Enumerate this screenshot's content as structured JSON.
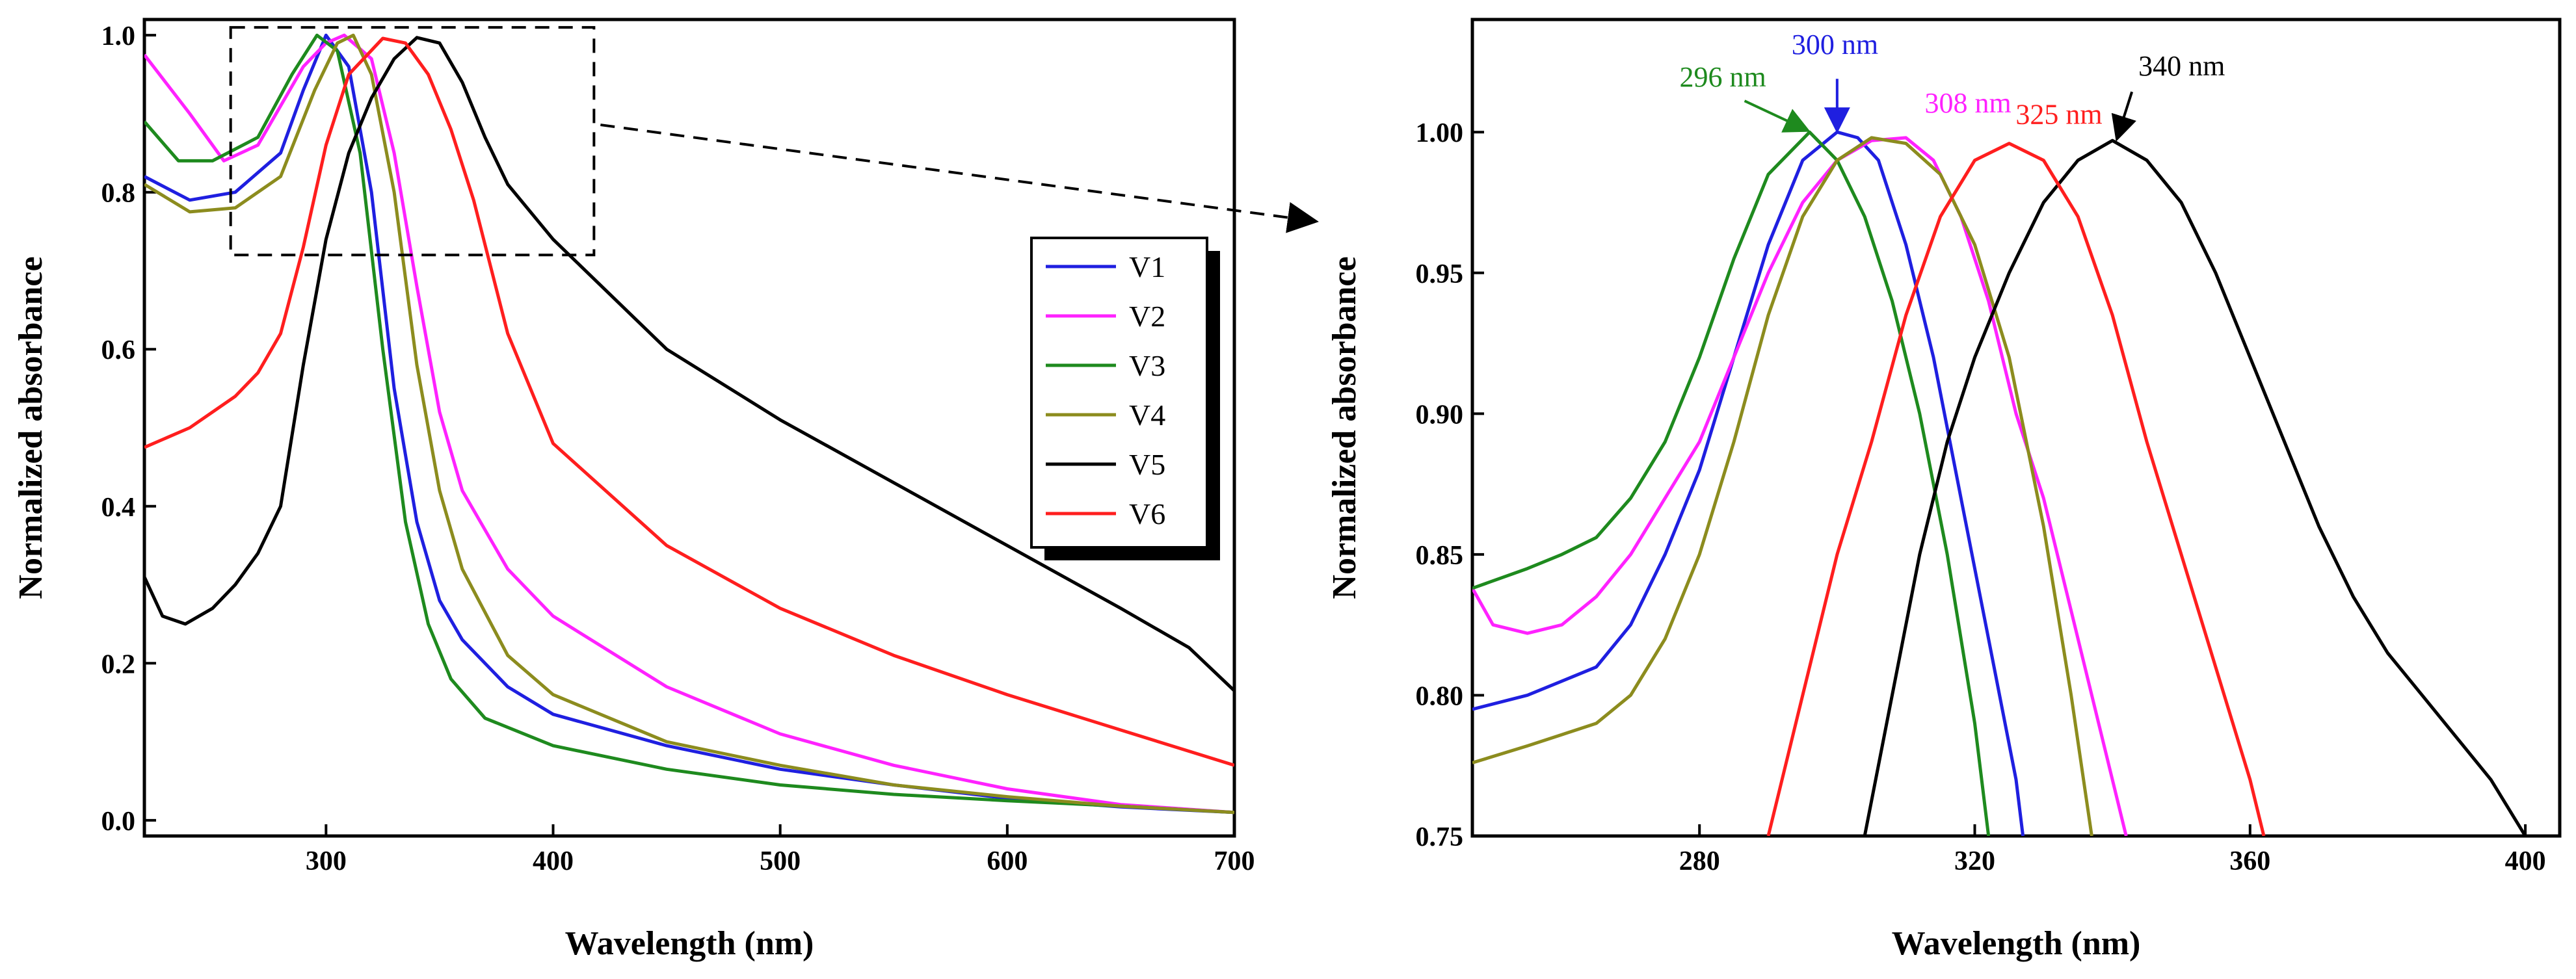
{
  "chart_data": [
    {
      "type": "line",
      "panel": "left",
      "xlabel": "Wavelength (nm)",
      "ylabel": "Normalized absorbance",
      "xlim": [
        220,
        700
      ],
      "ylim": [
        -0.02,
        1.02
      ],
      "xticks": [
        300,
        400,
        500,
        600,
        700
      ],
      "xtick_labels": [
        "300",
        "400",
        "500",
        "600",
        "700"
      ],
      "yticks": [
        0.0,
        0.2,
        0.4,
        0.6,
        0.8,
        1.0
      ],
      "ytick_labels": [
        "0.0",
        "0.2",
        "0.4",
        "0.6",
        "0.8",
        "1.0"
      ],
      "legend": {
        "position": "right-middle",
        "entries": [
          "V1",
          "V2",
          "V3",
          "V4",
          "V5",
          "V6"
        ]
      },
      "zoom_box": {
        "x_range": [
          258,
          418
        ],
        "y_range": [
          0.72,
          1.01
        ]
      },
      "series": [
        {
          "name": "V1",
          "color": "#1f1fe0",
          "points": [
            [
              220,
              0.82
            ],
            [
              240,
              0.79
            ],
            [
              260,
              0.8
            ],
            [
              280,
              0.85
            ],
            [
              290,
              0.93
            ],
            [
              300,
              1.0
            ],
            [
              310,
              0.96
            ],
            [
              320,
              0.8
            ],
            [
              330,
              0.55
            ],
            [
              340,
              0.38
            ],
            [
              350,
              0.28
            ],
            [
              360,
              0.23
            ],
            [
              380,
              0.17
            ],
            [
              400,
              0.135
            ],
            [
              450,
              0.095
            ],
            [
              500,
              0.065
            ],
            [
              550,
              0.045
            ],
            [
              600,
              0.028
            ],
            [
              650,
              0.017
            ],
            [
              700,
              0.01
            ]
          ]
        },
        {
          "name": "V2",
          "color": "#ff22ff",
          "points": [
            [
              220,
              0.975
            ],
            [
              240,
              0.9
            ],
            [
              255,
              0.84
            ],
            [
              270,
              0.86
            ],
            [
              290,
              0.96
            ],
            [
              300,
              0.99
            ],
            [
              308,
              1.0
            ],
            [
              320,
              0.97
            ],
            [
              330,
              0.85
            ],
            [
              340,
              0.68
            ],
            [
              350,
              0.52
            ],
            [
              360,
              0.42
            ],
            [
              380,
              0.32
            ],
            [
              400,
              0.26
            ],
            [
              450,
              0.17
            ],
            [
              500,
              0.11
            ],
            [
              550,
              0.07
            ],
            [
              600,
              0.04
            ],
            [
              650,
              0.02
            ],
            [
              700,
              0.01
            ]
          ]
        },
        {
          "name": "V3",
          "color": "#1e8a1e",
          "points": [
            [
              220,
              0.89
            ],
            [
              235,
              0.84
            ],
            [
              250,
              0.84
            ],
            [
              270,
              0.87
            ],
            [
              285,
              0.95
            ],
            [
              296,
              1.0
            ],
            [
              305,
              0.98
            ],
            [
              315,
              0.85
            ],
            [
              325,
              0.6
            ],
            [
              335,
              0.38
            ],
            [
              345,
              0.25
            ],
            [
              355,
              0.18
            ],
            [
              370,
              0.13
            ],
            [
              400,
              0.095
            ],
            [
              450,
              0.065
            ],
            [
              500,
              0.045
            ],
            [
              550,
              0.033
            ],
            [
              600,
              0.025
            ],
            [
              650,
              0.018
            ],
            [
              700,
              0.01
            ]
          ]
        },
        {
          "name": "V4",
          "color": "#8c8c1e",
          "points": [
            [
              220,
              0.81
            ],
            [
              240,
              0.775
            ],
            [
              260,
              0.78
            ],
            [
              280,
              0.82
            ],
            [
              295,
              0.93
            ],
            [
              305,
              0.99
            ],
            [
              312,
              1.0
            ],
            [
              320,
              0.95
            ],
            [
              330,
              0.8
            ],
            [
              340,
              0.58
            ],
            [
              350,
              0.42
            ],
            [
              360,
              0.32
            ],
            [
              380,
              0.21
            ],
            [
              400,
              0.16
            ],
            [
              450,
              0.1
            ],
            [
              500,
              0.07
            ],
            [
              550,
              0.045
            ],
            [
              600,
              0.03
            ],
            [
              650,
              0.018
            ],
            [
              700,
              0.01
            ]
          ]
        },
        {
          "name": "V5",
          "color": "#000000",
          "points": [
            [
              220,
              0.31
            ],
            [
              228,
              0.26
            ],
            [
              238,
              0.25
            ],
            [
              250,
              0.27
            ],
            [
              260,
              0.3
            ],
            [
              270,
              0.34
            ],
            [
              280,
              0.4
            ],
            [
              290,
              0.58
            ],
            [
              300,
              0.74
            ],
            [
              310,
              0.85
            ],
            [
              320,
              0.92
            ],
            [
              330,
              0.97
            ],
            [
              340,
              0.997
            ],
            [
              350,
              0.99
            ],
            [
              360,
              0.94
            ],
            [
              370,
              0.87
            ],
            [
              380,
              0.81
            ],
            [
              400,
              0.74
            ],
            [
              450,
              0.6
            ],
            [
              500,
              0.51
            ],
            [
              550,
              0.43
            ],
            [
              600,
              0.35
            ],
            [
              650,
              0.27
            ],
            [
              680,
              0.22
            ],
            [
              700,
              0.165
            ]
          ]
        },
        {
          "name": "V6",
          "color": "#ff1e1e",
          "points": [
            [
              220,
              0.475
            ],
            [
              240,
              0.5
            ],
            [
              260,
              0.54
            ],
            [
              270,
              0.57
            ],
            [
              280,
              0.62
            ],
            [
              290,
              0.73
            ],
            [
              300,
              0.86
            ],
            [
              310,
              0.95
            ],
            [
              325,
              0.996
            ],
            [
              335,
              0.99
            ],
            [
              345,
              0.95
            ],
            [
              355,
              0.88
            ],
            [
              365,
              0.79
            ],
            [
              380,
              0.62
            ],
            [
              400,
              0.48
            ],
            [
              450,
              0.35
            ],
            [
              500,
              0.27
            ],
            [
              550,
              0.21
            ],
            [
              600,
              0.16
            ],
            [
              650,
              0.115
            ],
            [
              700,
              0.07
            ]
          ]
        }
      ]
    },
    {
      "type": "line",
      "panel": "right",
      "xlabel": "Wavelength (nm)",
      "ylabel": "Normalized absorbance",
      "xlim": [
        247,
        405
      ],
      "ylim": [
        0.75,
        1.04
      ],
      "xticks": [
        280,
        320,
        360,
        400
      ],
      "xtick_labels": [
        "280",
        "320",
        "360",
        "400"
      ],
      "yticks": [
        0.75,
        0.8,
        0.85,
        0.9,
        0.95,
        1.0
      ],
      "ytick_labels": [
        "0.75",
        "0.80",
        "0.85",
        "0.90",
        "0.95",
        "1.00"
      ],
      "peak_labels": [
        {
          "text": "296 nm",
          "x": 296,
          "y": 1.0,
          "color": "#1e8a1e",
          "arrow": true
        },
        {
          "text": "300 nm",
          "x": 300,
          "y": 1.0,
          "color": "#1f1fe0",
          "arrow": true
        },
        {
          "text": "308 nm",
          "x": 308,
          "y": 1.0,
          "color": "#ff22ff",
          "arrow": false
        },
        {
          "text": "325 nm",
          "x": 325,
          "y": 0.996,
          "color": "#ff1e1e",
          "arrow": false
        },
        {
          "text": "340 nm",
          "x": 340,
          "y": 0.997,
          "color": "#000000",
          "arrow": true
        }
      ],
      "series": [
        {
          "name": "V1",
          "color": "#1f1fe0",
          "points": [
            [
              247,
              0.795
            ],
            [
              255,
              0.8
            ],
            [
              260,
              0.805
            ],
            [
              265,
              0.81
            ],
            [
              270,
              0.825
            ],
            [
              275,
              0.85
            ],
            [
              280,
              0.88
            ],
            [
              285,
              0.92
            ],
            [
              290,
              0.96
            ],
            [
              295,
              0.99
            ],
            [
              300,
              1.0
            ],
            [
              303,
              0.998
            ],
            [
              306,
              0.99
            ],
            [
              310,
              0.96
            ],
            [
              314,
              0.92
            ],
            [
              318,
              0.87
            ],
            [
              322,
              0.82
            ],
            [
              326,
              0.77
            ],
            [
              327,
              0.75
            ]
          ]
        },
        {
          "name": "V2",
          "color": "#ff22ff",
          "points": [
            [
              247,
              0.838
            ],
            [
              250,
              0.825
            ],
            [
              255,
              0.822
            ],
            [
              260,
              0.825
            ],
            [
              265,
              0.835
            ],
            [
              270,
              0.85
            ],
            [
              275,
              0.87
            ],
            [
              280,
              0.89
            ],
            [
              285,
              0.92
            ],
            [
              290,
              0.95
            ],
            [
              295,
              0.975
            ],
            [
              300,
              0.99
            ],
            [
              305,
              0.997
            ],
            [
              310,
              0.998
            ],
            [
              314,
              0.99
            ],
            [
              318,
              0.97
            ],
            [
              322,
              0.94
            ],
            [
              326,
              0.9
            ],
            [
              330,
              0.87
            ],
            [
              334,
              0.83
            ],
            [
              338,
              0.79
            ],
            [
              342,
              0.75
            ]
          ]
        },
        {
          "name": "V3",
          "color": "#1e8a1e",
          "points": [
            [
              247,
              0.838
            ],
            [
              255,
              0.845
            ],
            [
              260,
              0.85
            ],
            [
              265,
              0.856
            ],
            [
              270,
              0.87
            ],
            [
              275,
              0.89
            ],
            [
              280,
              0.92
            ],
            [
              285,
              0.955
            ],
            [
              290,
              0.985
            ],
            [
              296,
              1.0
            ],
            [
              300,
              0.99
            ],
            [
              304,
              0.97
            ],
            [
              308,
              0.94
            ],
            [
              312,
              0.9
            ],
            [
              316,
              0.85
            ],
            [
              320,
              0.79
            ],
            [
              322,
              0.75
            ]
          ]
        },
        {
          "name": "V4",
          "color": "#8c8c1e",
          "points": [
            [
              247,
              0.776
            ],
            [
              255,
              0.782
            ],
            [
              260,
              0.786
            ],
            [
              265,
              0.79
            ],
            [
              270,
              0.8
            ],
            [
              275,
              0.82
            ],
            [
              280,
              0.85
            ],
            [
              285,
              0.89
            ],
            [
              290,
              0.935
            ],
            [
              295,
              0.97
            ],
            [
              300,
              0.99
            ],
            [
              305,
              0.998
            ],
            [
              310,
              0.996
            ],
            [
              315,
              0.985
            ],
            [
              320,
              0.96
            ],
            [
              325,
              0.92
            ],
            [
              330,
              0.86
            ],
            [
              334,
              0.8
            ],
            [
              337,
              0.75
            ]
          ]
        },
        {
          "name": "V5",
          "color": "#000000",
          "points": [
            [
              304,
              0.75
            ],
            [
              308,
              0.8
            ],
            [
              312,
              0.85
            ],
            [
              316,
              0.89
            ],
            [
              320,
              0.92
            ],
            [
              325,
              0.95
            ],
            [
              330,
              0.975
            ],
            [
              335,
              0.99
            ],
            [
              340,
              0.997
            ],
            [
              345,
              0.99
            ],
            [
              350,
              0.975
            ],
            [
              355,
              0.95
            ],
            [
              360,
              0.92
            ],
            [
              365,
              0.89
            ],
            [
              370,
              0.86
            ],
            [
              375,
              0.835
            ],
            [
              380,
              0.815
            ],
            [
              385,
              0.8
            ],
            [
              390,
              0.785
            ],
            [
              395,
              0.77
            ],
            [
              400,
              0.75
            ]
          ]
        },
        {
          "name": "V6",
          "color": "#ff1e1e",
          "points": [
            [
              290,
              0.75
            ],
            [
              295,
              0.8
            ],
            [
              300,
              0.85
            ],
            [
              305,
              0.89
            ],
            [
              310,
              0.935
            ],
            [
              315,
              0.97
            ],
            [
              320,
              0.99
            ],
            [
              325,
              0.996
            ],
            [
              330,
              0.99
            ],
            [
              335,
              0.97
            ],
            [
              340,
              0.935
            ],
            [
              345,
              0.89
            ],
            [
              350,
              0.85
            ],
            [
              355,
              0.81
            ],
            [
              360,
              0.77
            ],
            [
              362,
              0.75
            ]
          ]
        }
      ]
    }
  ]
}
